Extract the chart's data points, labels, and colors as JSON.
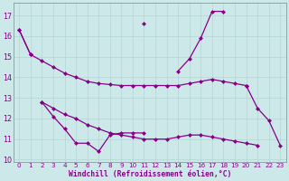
{
  "xlabel": "Windchill (Refroidissement éolien,°C)",
  "x": [
    0,
    1,
    2,
    3,
    4,
    5,
    6,
    7,
    8,
    9,
    10,
    11,
    12,
    13,
    14,
    15,
    16,
    17,
    18,
    19,
    20,
    21,
    22,
    23
  ],
  "line_top_jagged": [
    16.3,
    15.1,
    null,
    null,
    null,
    null,
    null,
    null,
    null,
    null,
    null,
    16.6,
    null,
    null,
    14.3,
    14.9,
    15.9,
    17.2,
    17.2,
    null,
    null,
    null,
    null,
    null
  ],
  "line_upper_smooth": [
    16.3,
    15.1,
    14.8,
    14.5,
    14.2,
    14.0,
    13.8,
    13.7,
    13.65,
    13.6,
    13.6,
    13.6,
    13.6,
    13.6,
    13.6,
    13.7,
    13.8,
    13.9,
    13.8,
    13.7,
    13.6,
    null,
    null,
    null
  ],
  "line_lower_smooth": [
    null,
    null,
    12.8,
    12.5,
    12.2,
    12.0,
    11.7,
    11.5,
    11.3,
    11.2,
    11.1,
    11.0,
    11.0,
    11.0,
    11.1,
    11.2,
    11.2,
    11.1,
    11.0,
    10.9,
    10.8,
    10.7,
    null,
    null
  ],
  "line_bot_jagged": [
    null,
    null,
    12.8,
    12.1,
    11.5,
    10.8,
    10.8,
    10.4,
    11.2,
    11.3,
    11.3,
    11.3,
    null,
    null,
    null,
    null,
    null,
    null,
    null,
    null,
    null,
    null,
    null,
    null
  ],
  "line_right_segment": [
    null,
    null,
    null,
    null,
    null,
    null,
    null,
    null,
    null,
    null,
    null,
    null,
    null,
    null,
    null,
    null,
    null,
    null,
    null,
    null,
    13.6,
    12.5,
    11.9,
    10.7
  ],
  "ylim": [
    9.9,
    17.6
  ],
  "yticks": [
    10,
    11,
    12,
    13,
    14,
    15,
    16,
    17
  ],
  "bg_color": "#cce8e8",
  "line_color": "#880088",
  "grid_color": "#b0d8d8",
  "font_color": "#880088",
  "markersize": 2.5,
  "linewidth": 0.9
}
